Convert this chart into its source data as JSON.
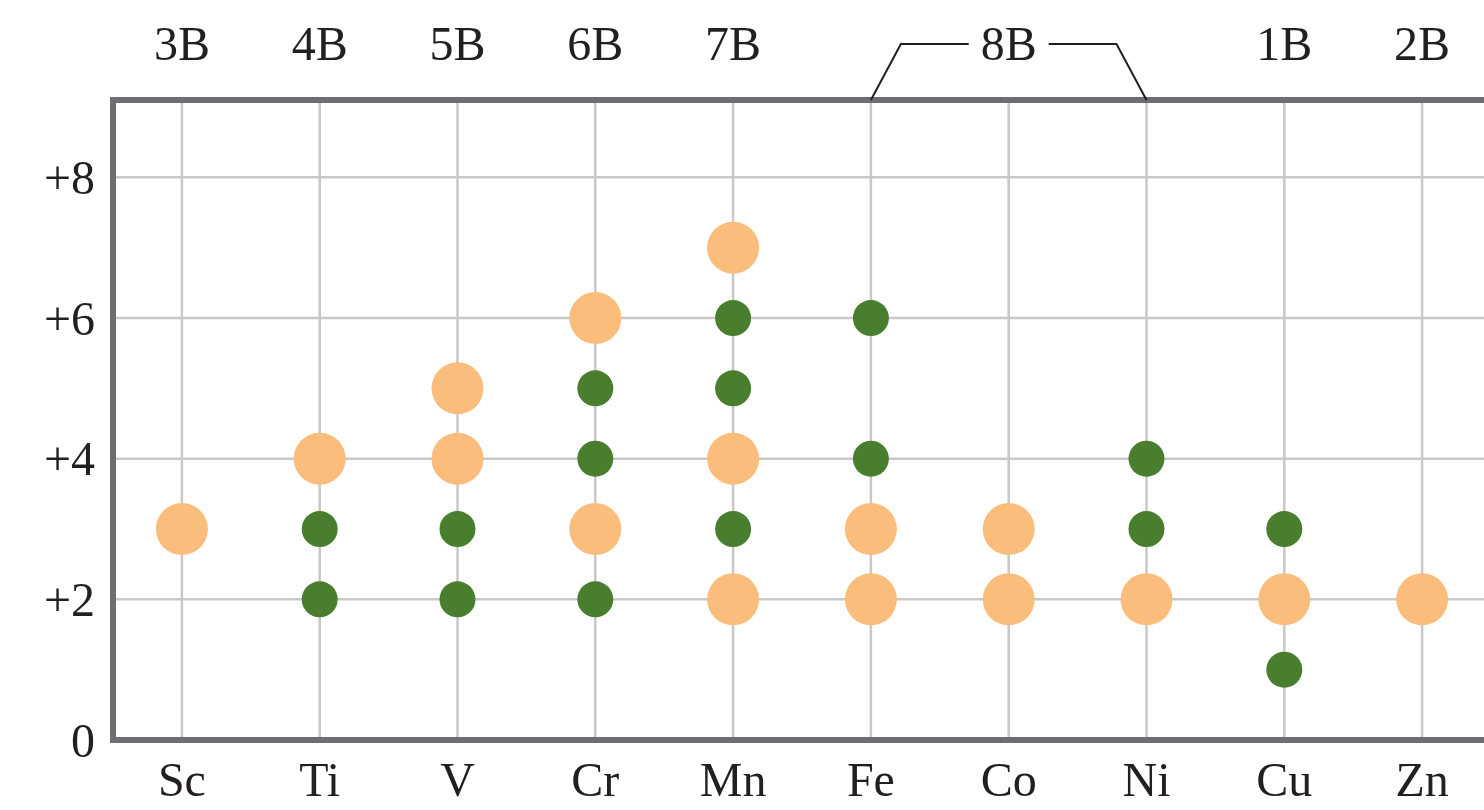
{
  "chart_data": {
    "type": "scatter",
    "categories": [
      "Sc",
      "Ti",
      "V",
      "Cr",
      "Mn",
      "Fe",
      "Co",
      "Ni",
      "Cu",
      "Zn"
    ],
    "ylim": [
      0,
      9.1
    ],
    "yticks": [
      0,
      {
        "value": 2,
        "label": "+2"
      },
      {
        "value": 4,
        "label": "+4"
      },
      {
        "value": 6,
        "label": "+6"
      },
      {
        "value": 8,
        "label": "+8"
      }
    ],
    "grid": true,
    "marker": "circle",
    "annotations": [
      "3B",
      "4B",
      "5B",
      "6B",
      "7B",
      "8B",
      "1B",
      "2B"
    ],
    "series": [
      {
        "color": "#fbbd7b",
        "x": [
          "Sc",
          "Ti",
          "V",
          "V",
          "Cr",
          "Cr",
          "Mn",
          "Mn",
          "Mn",
          "Fe",
          "Fe",
          "Co",
          "Co",
          "Ni",
          "Cu",
          "Zn"
        ],
        "values": [
          3,
          4,
          5,
          4,
          6,
          3,
          7,
          4,
          2,
          3,
          2,
          3,
          2,
          2,
          2,
          2
        ]
      },
      {
        "color": "#4a7e2f",
        "x": [
          "Ti",
          "Ti",
          "V",
          "V",
          "Cr",
          "Cr",
          "Cr",
          "Mn",
          "Mn",
          "Mn",
          "Fe",
          "Fe",
          "Ni",
          "Ni",
          "Cu",
          "Cu"
        ],
        "values": [
          3,
          2,
          3,
          2,
          5,
          4,
          2,
          6,
          5,
          3,
          6,
          4,
          4,
          3,
          3,
          1
        ]
      }
    ]
  }
}
